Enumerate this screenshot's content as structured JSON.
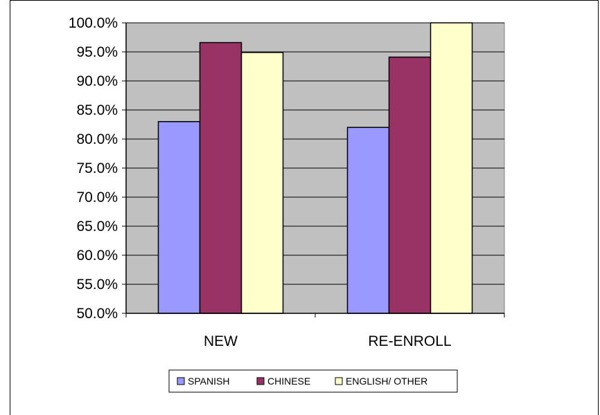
{
  "chart_data": {
    "type": "bar",
    "categories": [
      "NEW",
      "RE-ENROLL"
    ],
    "series": [
      {
        "name": "SPANISH",
        "values": [
          83.0,
          82.0
        ],
        "color": "#9999ff"
      },
      {
        "name": "CHINESE",
        "values": [
          96.6,
          94.1
        ],
        "color": "#993366"
      },
      {
        "name": "ENGLISH/ OTHER",
        "values": [
          94.9,
          100.0
        ],
        "color": "#ffffcc"
      }
    ],
    "y_ticks": [
      "50.0%",
      "55.0%",
      "60.0%",
      "65.0%",
      "70.0%",
      "75.0%",
      "80.0%",
      "85.0%",
      "90.0%",
      "95.0%",
      "100.0%"
    ],
    "ylim": [
      50,
      100
    ],
    "plot_background": "#c0c0c0",
    "grid": true,
    "legend_position": "bottom",
    "title": "",
    "xlabel": "",
    "ylabel": ""
  }
}
